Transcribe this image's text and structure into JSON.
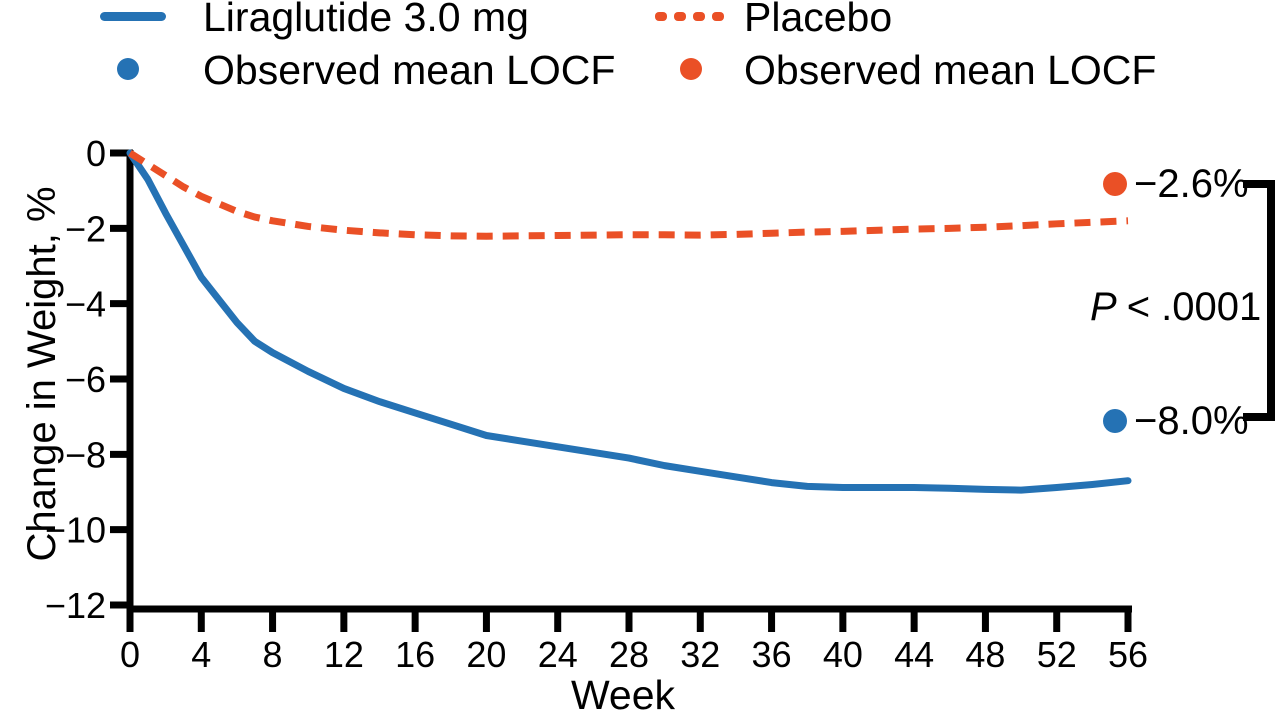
{
  "legend": {
    "liraglutide": {
      "label": "Liraglutide 3.0 mg",
      "observed_label": "Observed mean LOCF",
      "color": "#2572b4"
    },
    "placebo": {
      "label": "Placebo",
      "observed_label": "Observed mean LOCF",
      "color": "#ea5026"
    }
  },
  "annotations": {
    "placebo_end": {
      "value_label": "−2.6%",
      "color": "#ea5026"
    },
    "liraglutide_end": {
      "value_label": "−8.0%",
      "color": "#2572b4"
    },
    "p_value": {
      "variable": "P",
      "comparison": "< .0001"
    }
  },
  "chart_data": {
    "type": "line",
    "title": "",
    "xlabel": "Week",
    "ylabel": "Change in Weight, %",
    "xlim": [
      0,
      56
    ],
    "ylim": [
      -12,
      0
    ],
    "grid": false,
    "legend_position": "top",
    "x_ticks": [
      0,
      4,
      8,
      12,
      16,
      20,
      24,
      28,
      32,
      36,
      40,
      44,
      48,
      52,
      56
    ],
    "x_tick_labels": [
      "0",
      "4",
      "8",
      "12",
      "16",
      "20",
      "24",
      "28",
      "32",
      "36",
      "40",
      "44",
      "48",
      "52",
      "56"
    ],
    "y_ticks": [
      0,
      -2,
      -4,
      -6,
      -8,
      -10,
      -12
    ],
    "y_tick_labels": [
      "0",
      "−2",
      "−4",
      "−6",
      "−8",
      "−10",
      "−12"
    ],
    "series": [
      {
        "name": "Liraglutide 3.0 mg",
        "style": "solid",
        "color": "#2572b4",
        "marker_note": "Observed mean LOCF",
        "final_locf_label": "−8.0%",
        "final_locf_value": -8.0,
        "x": [
          0,
          1,
          2,
          3,
          4,
          5,
          6,
          7,
          8,
          10,
          12,
          14,
          16,
          18,
          20,
          22,
          24,
          26,
          28,
          30,
          32,
          34,
          36,
          38,
          40,
          42,
          44,
          46,
          48,
          50,
          52,
          54,
          56
        ],
        "y": [
          0,
          -0.7,
          -1.6,
          -2.45,
          -3.3,
          -3.9,
          -4.5,
          -5.0,
          -5.3,
          -5.8,
          -6.25,
          -6.6,
          -6.9,
          -7.2,
          -7.5,
          -7.65,
          -7.8,
          -7.95,
          -8.1,
          -8.3,
          -8.45,
          -8.6,
          -8.75,
          -8.85,
          -8.88,
          -8.88,
          -8.88,
          -8.9,
          -8.93,
          -8.95,
          -8.88,
          -8.8,
          -8.7
        ]
      },
      {
        "name": "Placebo",
        "style": "dashed",
        "color": "#ea5026",
        "marker_note": "Observed mean LOCF",
        "final_locf_label": "−2.6%",
        "final_locf_value": -2.6,
        "x": [
          0,
          1,
          2,
          3,
          4,
          5,
          6,
          7,
          8,
          10,
          12,
          14,
          16,
          18,
          20,
          22,
          24,
          26,
          28,
          30,
          32,
          34,
          36,
          38,
          40,
          42,
          44,
          46,
          48,
          50,
          52,
          54,
          56
        ],
        "y": [
          0,
          -0.3,
          -0.6,
          -0.9,
          -1.15,
          -1.35,
          -1.55,
          -1.7,
          -1.8,
          -1.95,
          -2.05,
          -2.12,
          -2.17,
          -2.2,
          -2.21,
          -2.2,
          -2.19,
          -2.18,
          -2.17,
          -2.17,
          -2.18,
          -2.16,
          -2.13,
          -2.1,
          -2.08,
          -2.05,
          -2.02,
          -2.0,
          -1.97,
          -1.93,
          -1.88,
          -1.84,
          -1.8
        ]
      }
    ],
    "annotation_text": {
      "p_value": "P < .0001"
    }
  }
}
